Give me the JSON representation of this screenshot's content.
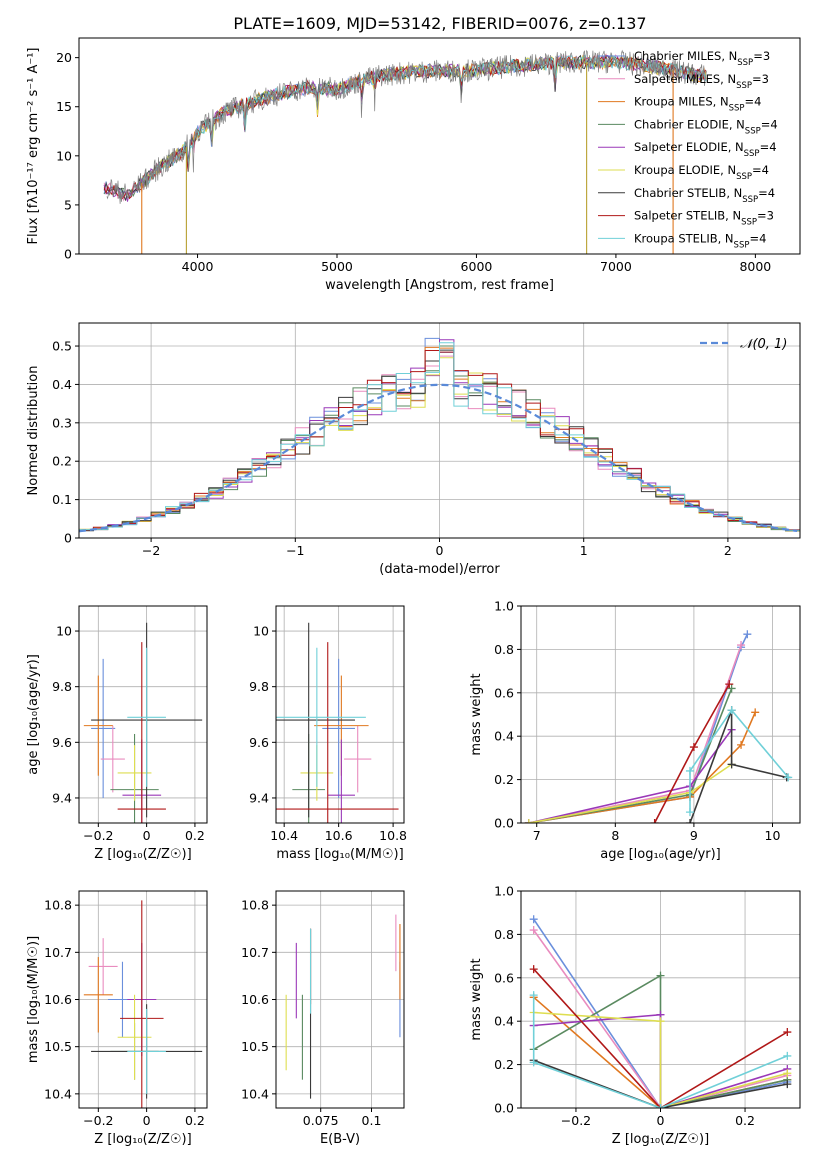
{
  "figure_title": "PLATE=1609, MJD=53142, FIBERID=0076, z=0.137",
  "colors": {
    "Chabrier MILES": "#6a8fdc",
    "Salpeter MILES": "#e98cbf",
    "Kroupa MILES": "#e07820",
    "Chabrier ELODIE": "#5a8a60",
    "Salpeter ELODIE": "#9a38b8",
    "Kroupa ELODIE": "#dede50",
    "Chabrier STELIB": "#3a3a3a",
    "Salpeter STELIB": "#b01818",
    "Kroupa STELIB": "#70d0d8"
  },
  "legend": [
    {
      "name": "Chabrier MILES",
      "nssp": "=3"
    },
    {
      "name": "Salpeter MILES",
      "nssp": "=3"
    },
    {
      "name": "Kroupa MILES",
      "nssp": "=4"
    },
    {
      "name": "Chabrier ELODIE",
      "nssp": "=4"
    },
    {
      "name": "Salpeter ELODIE",
      "nssp": "=4"
    },
    {
      "name": "Kroupa ELODIE",
      "nssp": "=4"
    },
    {
      "name": "Chabrier STELIB",
      "nssp": "=4"
    },
    {
      "name": "Salpeter STELIB",
      "nssp": "=3"
    },
    {
      "name": "Kroupa STELIB",
      "nssp": "=4"
    }
  ],
  "chart_data": [
    {
      "id": "spectrum",
      "type": "line",
      "xlabel": "wavelength [Angstrom, rest frame]",
      "ylabel": "Flux [fλ10⁻¹⁷ erg cm⁻² s⁻¹ A⁻¹]",
      "xlim": [
        3150,
        8320
      ],
      "ylim": [
        0,
        22
      ],
      "xticks": [
        4000,
        5000,
        6000,
        7000,
        8000
      ],
      "yticks": [
        0,
        5,
        10,
        15,
        20
      ],
      "grid": false,
      "legend_position": "top-right",
      "observed": {
        "x": [
          3350,
          3500,
          3700,
          3900,
          4000,
          4200,
          4500,
          4800,
          5000,
          5300,
          5600,
          6000,
          6300,
          6600,
          7000,
          7300,
          7600
        ],
        "y": [
          6.8,
          6.0,
          8.5,
          10.5,
          12.5,
          14.5,
          16.0,
          17.0,
          16.8,
          18.2,
          18.6,
          18.7,
          19.2,
          19.5,
          19.6,
          19.0,
          18.2
        ]
      }
    },
    {
      "id": "residuals",
      "type": "bar",
      "xlabel": "(data-model)/error",
      "ylabel": "Normed distribution",
      "xlim": [
        -2.5,
        2.5
      ],
      "ylim": [
        0,
        0.56
      ],
      "xticks": [
        -2,
        -1,
        0,
        1,
        2
      ],
      "yticks": [
        0.0,
        0.1,
        0.2,
        0.3,
        0.4,
        0.5
      ],
      "grid": true,
      "legend_position": "top-right",
      "reference_label": "𝒩(0, 1)"
    },
    {
      "id": "age_vs_Z",
      "type": "scatter",
      "xlabel": "Z [log₁₀(Z/Z☉)]",
      "ylabel": "age  [log₁₀(age/yr)]",
      "xlim": [
        -0.28,
        0.25
      ],
      "ylim": [
        9.31,
        10.09
      ],
      "xticks": [
        -0.2,
        0.0,
        0.2
      ],
      "yticks": [
        9.4,
        9.6,
        9.8,
        10.0
      ],
      "grid": true,
      "points": [
        {
          "series": "Chabrier MILES",
          "x": -0.18,
          "y": 9.65,
          "xerr": 0.05,
          "yerr": 0.25
        },
        {
          "series": "Salpeter MILES",
          "x": -0.14,
          "y": 9.54,
          "xerr": 0.05,
          "yerr": 0.12
        },
        {
          "series": "Kroupa MILES",
          "x": -0.2,
          "y": 9.66,
          "xerr": 0.06,
          "yerr": 0.18
        },
        {
          "series": "Chabrier ELODIE",
          "x": -0.05,
          "y": 9.43,
          "xerr": 0.1,
          "yerr": 0.2
        },
        {
          "series": "Salpeter ELODIE",
          "x": -0.02,
          "y": 9.41,
          "xerr": 0.08,
          "yerr": 0.2
        },
        {
          "series": "Kroupa ELODIE",
          "x": -0.05,
          "y": 9.49,
          "xerr": 0.07,
          "yerr": 0.1
        },
        {
          "series": "Chabrier STELIB",
          "x": 0.0,
          "y": 9.68,
          "xerr": 0.23,
          "yerr": 0.35
        },
        {
          "series": "Salpeter STELIB",
          "x": -0.02,
          "y": 9.36,
          "xerr": 0.1,
          "yerr": 0.6
        },
        {
          "series": "Kroupa STELIB",
          "x": 0.0,
          "y": 9.69,
          "xerr": 0.08,
          "yerr": 0.25
        }
      ]
    },
    {
      "id": "age_vs_mass",
      "type": "scatter",
      "xlabel": "mass [log₁₀(M/M☉)]",
      "ylabel": "",
      "xlim": [
        10.37,
        10.84
      ],
      "ylim": [
        9.31,
        10.09
      ],
      "xticks": [
        10.4,
        10.6,
        10.8
      ],
      "yticks": [
        9.4,
        9.6,
        9.8,
        10.0
      ],
      "grid": true,
      "points": [
        {
          "series": "Chabrier MILES",
          "x": 10.6,
          "y": 9.65,
          "xerr": 0.06,
          "yerr": 0.25
        },
        {
          "series": "Salpeter MILES",
          "x": 10.67,
          "y": 9.54,
          "xerr": 0.05,
          "yerr": 0.12
        },
        {
          "series": "Kroupa MILES",
          "x": 10.61,
          "y": 9.66,
          "xerr": 0.1,
          "yerr": 0.18
        },
        {
          "series": "Chabrier ELODIE",
          "x": 10.49,
          "y": 9.43,
          "xerr": 0.06,
          "yerr": 0.2
        },
        {
          "series": "Salpeter ELODIE",
          "x": 10.61,
          "y": 9.41,
          "xerr": 0.05,
          "yerr": 0.2
        },
        {
          "series": "Kroupa ELODIE",
          "x": 10.52,
          "y": 9.49,
          "xerr": 0.06,
          "yerr": 0.1
        },
        {
          "series": "Chabrier STELIB",
          "x": 10.49,
          "y": 9.68,
          "xerr": 0.17,
          "yerr": 0.35
        },
        {
          "series": "Salpeter STELIB",
          "x": 10.56,
          "y": 9.36,
          "xerr": 0.26,
          "yerr": 0.6
        },
        {
          "series": "Kroupa STELIB",
          "x": 10.52,
          "y": 9.69,
          "xerr": 0.18,
          "yerr": 0.25
        }
      ]
    },
    {
      "id": "weight_vs_age",
      "type": "line",
      "xlabel": "age  [log₁₀(age/yr)]",
      "ylabel": "mass weight",
      "xlim": [
        6.8,
        10.35
      ],
      "ylim": [
        0,
        1
      ],
      "xticks": [
        7,
        8,
        9,
        10
      ],
      "yticks": [
        0.0,
        0.2,
        0.4,
        0.6,
        0.8,
        1.0
      ],
      "grid": true,
      "series": [
        {
          "name": "Chabrier MILES",
          "x": [
            6.9,
            8.95,
            9.6,
            9.68
          ],
          "y": [
            0.0,
            0.12,
            0.81,
            0.87
          ]
        },
        {
          "name": "Salpeter MILES",
          "x": [
            6.9,
            8.95,
            9.6
          ],
          "y": [
            0.0,
            0.15,
            0.82
          ]
        },
        {
          "name": "Kroupa MILES",
          "x": [
            6.9,
            8.95,
            9.6,
            9.78
          ],
          "y": [
            0.0,
            0.12,
            0.36,
            0.51
          ]
        },
        {
          "name": "Chabrier ELODIE",
          "x": [
            6.9,
            8.95,
            9.48
          ],
          "y": [
            0.0,
            0.13,
            0.62
          ]
        },
        {
          "name": "Salpeter ELODIE",
          "x": [
            6.9,
            8.95,
            9.48
          ],
          "y": [
            0.0,
            0.17,
            0.43
          ]
        },
        {
          "name": "Kroupa ELODIE",
          "x": [
            6.9,
            8.95,
            9.48
          ],
          "y": [
            0.0,
            0.14,
            0.27
          ]
        },
        {
          "name": "Chabrier STELIB",
          "x": [
            8.95,
            9.48,
            9.48,
            10.18
          ],
          "y": [
            0.0,
            0.52,
            0.27,
            0.21
          ]
        },
        {
          "name": "Salpeter STELIB",
          "x": [
            8.5,
            9.0,
            9.45
          ],
          "y": [
            0.0,
            0.35,
            0.64
          ]
        },
        {
          "name": "Kroupa STELIB",
          "x": [
            8.95,
            8.95,
            9.48,
            10.2
          ],
          "y": [
            0.05,
            0.24,
            0.52,
            0.21
          ]
        }
      ]
    },
    {
      "id": "mass_vs_Z",
      "type": "scatter",
      "xlabel": "Z [log₁₀(Z/Z☉)]",
      "ylabel": "mass [log₁₀(M/M☉)]",
      "xlim": [
        -0.28,
        0.25
      ],
      "ylim": [
        10.37,
        10.83
      ],
      "xticks": [
        -0.2,
        0.0,
        0.2
      ],
      "yticks": [
        10.4,
        10.5,
        10.6,
        10.7,
        10.8
      ],
      "grid": true,
      "points": [
        {
          "series": "Chabrier MILES",
          "x": -0.1,
          "y": 10.6,
          "xerr": 0.06,
          "yerr": 0.08
        },
        {
          "series": "Salpeter MILES",
          "x": -0.18,
          "y": 10.67,
          "xerr": 0.06,
          "yerr": 0.06
        },
        {
          "series": "Kroupa MILES",
          "x": -0.2,
          "y": 10.61,
          "xerr": 0.06,
          "yerr": 0.08
        },
        {
          "series": "Chabrier ELODIE",
          "x": -0.05,
          "y": 10.49,
          "xerr": 0.1,
          "yerr": 0.06
        },
        {
          "series": "Salpeter ELODIE",
          "x": -0.02,
          "y": 10.6,
          "xerr": 0.06,
          "yerr": 0.12
        },
        {
          "series": "Kroupa ELODIE",
          "x": -0.05,
          "y": 10.52,
          "xerr": 0.07,
          "yerr": 0.09
        },
        {
          "series": "Chabrier STELIB",
          "x": 0.0,
          "y": 10.49,
          "xerr": 0.23,
          "yerr": 0.1
        },
        {
          "series": "Salpeter STELIB",
          "x": -0.02,
          "y": 10.56,
          "xerr": 0.09,
          "yerr": 0.25
        },
        {
          "series": "Kroupa STELIB",
          "x": 0.0,
          "y": 10.49,
          "xerr": 0.08,
          "yerr": 0.09
        }
      ]
    },
    {
      "id": "mass_vs_ebv",
      "type": "scatter",
      "xlabel": "E(B-V)",
      "ylabel": "",
      "xlim": [
        0.053,
        0.116
      ],
      "ylim": [
        10.37,
        10.83
      ],
      "xticks": [
        0.075,
        0.1
      ],
      "yticks": [
        10.4,
        10.5,
        10.6,
        10.7,
        10.8
      ],
      "grid": true,
      "points": [
        {
          "series": "Chabrier MILES",
          "x": 0.114,
          "y": 10.6,
          "yerr": 0.08
        },
        {
          "series": "Salpeter MILES",
          "x": 0.112,
          "y": 10.72,
          "yerr": 0.06
        },
        {
          "series": "Kroupa MILES",
          "x": 0.114,
          "y": 10.68,
          "yerr": 0.08
        },
        {
          "series": "Chabrier ELODIE",
          "x": 0.066,
          "y": 10.52,
          "yerr": 0.09
        },
        {
          "series": "Salpeter ELODIE",
          "x": 0.063,
          "y": 10.64,
          "yerr": 0.08
        },
        {
          "series": "Kroupa ELODIE",
          "x": 0.058,
          "y": 10.53,
          "yerr": 0.08
        },
        {
          "series": "Chabrier STELIB",
          "x": 0.07,
          "y": 10.57,
          "yerr": 0.18
        },
        {
          "series": "Salpeter STELIB",
          "x": 0.07,
          "y": 10.67,
          "yerr": 0.08
        },
        {
          "series": "Kroupa STELIB",
          "x": 0.07,
          "y": 10.66,
          "yerr": 0.09
        }
      ]
    },
    {
      "id": "weight_vs_Z",
      "type": "line",
      "xlabel": "Z [log₁₀(Z/Z☉)]",
      "ylabel": "mass weight",
      "xlim": [
        -0.33,
        0.33
      ],
      "ylim": [
        0,
        1
      ],
      "xticks": [
        -0.2,
        0.0,
        0.2
      ],
      "yticks": [
        0.0,
        0.2,
        0.4,
        0.6,
        0.8,
        1.0
      ],
      "grid": true,
      "series": [
        {
          "name": "Chabrier MILES",
          "x": [
            -0.3,
            0.0,
            0.3
          ],
          "y": [
            0.87,
            0.0,
            0.12
          ]
        },
        {
          "name": "Salpeter MILES",
          "x": [
            -0.3,
            0.0,
            0.3
          ],
          "y": [
            0.82,
            0.0,
            0.15
          ]
        },
        {
          "name": "Kroupa MILES",
          "x": [
            -0.3,
            0.0,
            0.3
          ],
          "y": [
            0.51,
            0.0,
            0.13
          ]
        },
        {
          "name": "Chabrier ELODIE",
          "x": [
            -0.3,
            0.0,
            0.0,
            0.3
          ],
          "y": [
            0.27,
            0.61,
            0.0,
            0.13
          ]
        },
        {
          "name": "Salpeter ELODIE",
          "x": [
            -0.3,
            0.0,
            0.0,
            0.3
          ],
          "y": [
            0.38,
            0.43,
            0.0,
            0.18
          ]
        },
        {
          "name": "Kroupa ELODIE",
          "x": [
            -0.3,
            0.0,
            0.0,
            0.3
          ],
          "y": [
            0.44,
            0.4,
            0.0,
            0.16
          ]
        },
        {
          "name": "Chabrier STELIB",
          "x": [
            -0.3,
            0.0,
            0.3
          ],
          "y": [
            0.22,
            0.0,
            0.11
          ]
        },
        {
          "name": "Salpeter STELIB",
          "x": [
            -0.3,
            0.0,
            0.3
          ],
          "y": [
            0.64,
            0.0,
            0.35
          ]
        },
        {
          "name": "Kroupa STELIB",
          "x": [
            -0.3,
            -0.3,
            0.0,
            0.3
          ],
          "y": [
            0.52,
            0.21,
            0.0,
            0.24
          ]
        }
      ]
    }
  ]
}
